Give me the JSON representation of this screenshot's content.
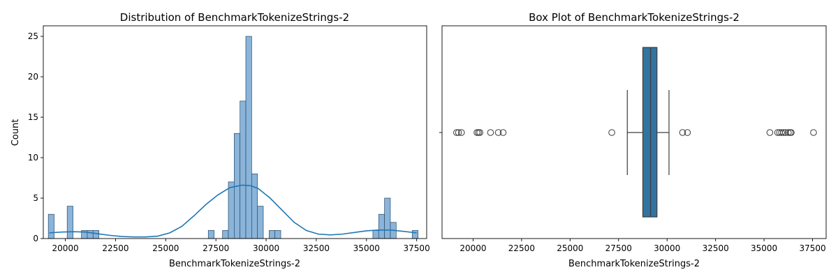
{
  "chart_data": [
    {
      "type": "histogram",
      "title": "Distribution of BenchmarkTokenizeStrings-2",
      "xlabel": "BenchmarkTokenizeStrings-2",
      "ylabel": "Count",
      "xlim": [
        18900,
        38000
      ],
      "ylim": [
        0,
        26.3
      ],
      "xticks": [
        20000,
        22500,
        25000,
        27500,
        30000,
        32500,
        35000,
        37500
      ],
      "yticks": [
        0,
        5,
        10,
        15,
        20,
        25
      ],
      "bin_width": 290,
      "bars": [
        {
          "x0": 19150,
          "count": 3
        },
        {
          "x0": 20090,
          "count": 4
        },
        {
          "x0": 20800,
          "count": 1
        },
        {
          "x0": 21090,
          "count": 1
        },
        {
          "x0": 21380,
          "count": 1
        },
        {
          "x0": 27120,
          "count": 1
        },
        {
          "x0": 27830,
          "count": 1
        },
        {
          "x0": 28120,
          "count": 7
        },
        {
          "x0": 28410,
          "count": 13
        },
        {
          "x0": 28700,
          "count": 17
        },
        {
          "x0": 28990,
          "count": 25
        },
        {
          "x0": 29280,
          "count": 8
        },
        {
          "x0": 29570,
          "count": 4
        },
        {
          "x0": 30150,
          "count": 1
        },
        {
          "x0": 30440,
          "count": 1
        },
        {
          "x0": 35320,
          "count": 1
        },
        {
          "x0": 35610,
          "count": 3
        },
        {
          "x0": 35900,
          "count": 5
        },
        {
          "x0": 36190,
          "count": 2
        },
        {
          "x0": 37280,
          "count": 1
        }
      ],
      "kde": [
        [
          19200,
          0.7
        ],
        [
          19800,
          0.8
        ],
        [
          20400,
          0.85
        ],
        [
          21000,
          0.8
        ],
        [
          21600,
          0.6
        ],
        [
          22200,
          0.4
        ],
        [
          22800,
          0.25
        ],
        [
          23400,
          0.2
        ],
        [
          24000,
          0.2
        ],
        [
          24600,
          0.3
        ],
        [
          25200,
          0.7
        ],
        [
          25800,
          1.5
        ],
        [
          26400,
          2.8
        ],
        [
          27000,
          4.2
        ],
        [
          27600,
          5.4
        ],
        [
          28200,
          6.3
        ],
        [
          28800,
          6.6
        ],
        [
          29200,
          6.55
        ],
        [
          29600,
          6.2
        ],
        [
          30200,
          5.0
        ],
        [
          30800,
          3.5
        ],
        [
          31400,
          2.0
        ],
        [
          32000,
          1.0
        ],
        [
          32600,
          0.55
        ],
        [
          33200,
          0.45
        ],
        [
          33800,
          0.55
        ],
        [
          34400,
          0.75
        ],
        [
          35000,
          0.95
        ],
        [
          35600,
          1.05
        ],
        [
          36200,
          1.05
        ],
        [
          36800,
          0.9
        ],
        [
          37500,
          0.7
        ]
      ],
      "colors": {
        "bar": "#8ab4d9",
        "bar_edge": "#2b4a68",
        "kde": "#1f77b4"
      }
    },
    {
      "type": "box",
      "title": "Box Plot of BenchmarkTokenizeStrings-2",
      "xlabel": "BenchmarkTokenizeStrings-2",
      "xlim": [
        18400,
        38200
      ],
      "xticks": [
        20000,
        22500,
        25000,
        27500,
        30000,
        32500,
        35000,
        37500
      ],
      "box": {
        "whisker_low": 27950,
        "q1": 28750,
        "median": 29150,
        "q3": 29480,
        "whisker_high": 30100
      },
      "outliers": [
        19150,
        19250,
        19400,
        20200,
        20280,
        20350,
        20900,
        21300,
        21550,
        27150,
        30800,
        31050,
        35300,
        35700,
        35800,
        35900,
        36000,
        36100,
        36250,
        36350,
        36400,
        37550
      ],
      "colors": {
        "box": "#3274a1",
        "line": "#3d3d3d"
      }
    }
  ]
}
